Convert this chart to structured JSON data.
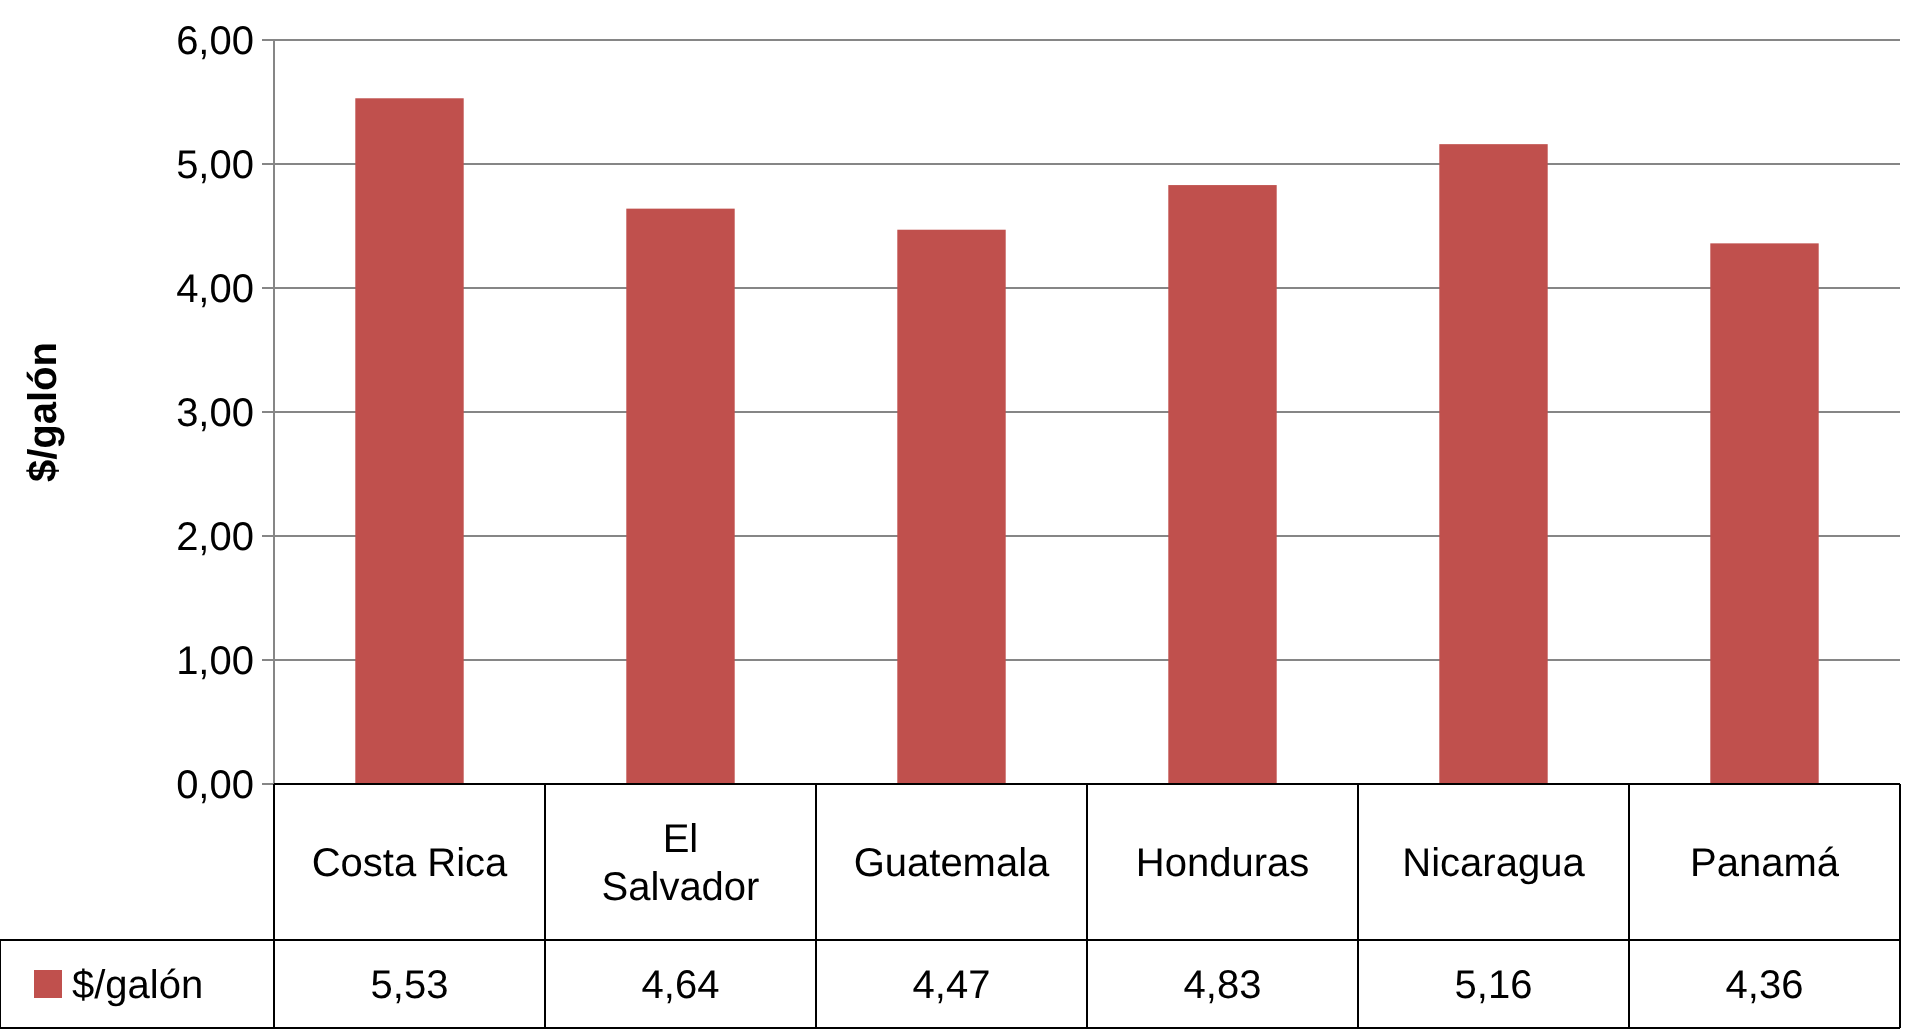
{
  "chart_data": {
    "type": "bar",
    "ylabel": "$/galón",
    "categories": [
      "Costa Rica",
      "El Salvador",
      "Guatemala",
      "Honduras",
      "Nicaragua",
      "Panamá"
    ],
    "series": [
      {
        "name": "$/galón",
        "color": "#c0504d",
        "values": [
          5.53,
          4.64,
          4.47,
          4.83,
          5.16,
          4.36
        ],
        "value_labels": [
          "5,53",
          "4,64",
          "4,47",
          "4,83",
          "5,16",
          "4,36"
        ]
      }
    ],
    "ylim": [
      0,
      6
    ],
    "yticks": [
      {
        "value": 0,
        "label": "0,00"
      },
      {
        "value": 1,
        "label": "1,00"
      },
      {
        "value": 2,
        "label": "2,00"
      },
      {
        "value": 3,
        "label": "3,00"
      },
      {
        "value": 4,
        "label": "4,00"
      },
      {
        "value": 5,
        "label": "5,00"
      },
      {
        "value": 6,
        "label": "6,00"
      }
    ],
    "grid": "y",
    "legend": "bottom"
  }
}
